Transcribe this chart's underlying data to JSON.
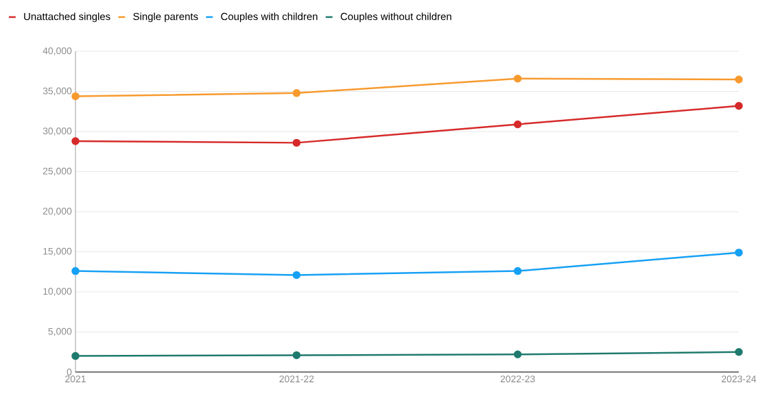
{
  "chart_data": {
    "type": "line",
    "categories": [
      "2021",
      "2021-22",
      "2022-23",
      "2023-24"
    ],
    "series": [
      {
        "name": "Unattached singles",
        "color": "#d62a2a",
        "values": [
          28800,
          28600,
          30900,
          33200
        ]
      },
      {
        "name": "Single parents",
        "color": "#f79a2e",
        "values": [
          34400,
          34800,
          36600,
          36500
        ]
      },
      {
        "name": "Couples with children",
        "color": "#16a0f5",
        "values": [
          12600,
          12100,
          12600,
          14900
        ]
      },
      {
        "name": "Couples without children",
        "color": "#1f7a6e",
        "values": [
          2000,
          2100,
          2200,
          2500
        ]
      }
    ],
    "ylim": [
      0,
      40000
    ],
    "yticks": [
      0,
      {
        "value": 5000,
        "label": "5,000"
      },
      {
        "value": 10000,
        "label": "10,000"
      },
      {
        "value": 15000,
        "label": "15,000"
      },
      {
        "value": 20000,
        "label": "20,000"
      },
      {
        "value": 25000,
        "label": "25,000"
      },
      {
        "value": 30000,
        "label": "30,000"
      },
      {
        "value": 35000,
        "label": "35,000"
      },
      {
        "value": 40000,
        "label": "40,000"
      }
    ],
    "grid": "y",
    "legend": "top left",
    "marker": "circle",
    "line_style": "solid"
  }
}
